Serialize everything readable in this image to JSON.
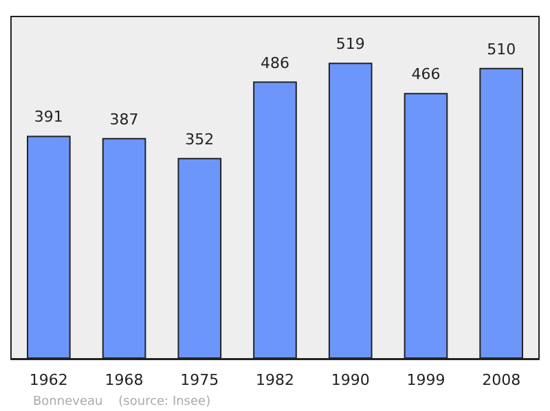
{
  "chart_data": {
    "type": "bar",
    "categories": [
      "1962",
      "1968",
      "1975",
      "1982",
      "1990",
      "1999",
      "2008"
    ],
    "values": [
      391,
      387,
      352,
      486,
      519,
      466,
      510
    ],
    "color": "#6d96fb",
    "data_labels": true,
    "annotations": [
      "Bonneveau    (source: Insee)"
    ]
  }
}
